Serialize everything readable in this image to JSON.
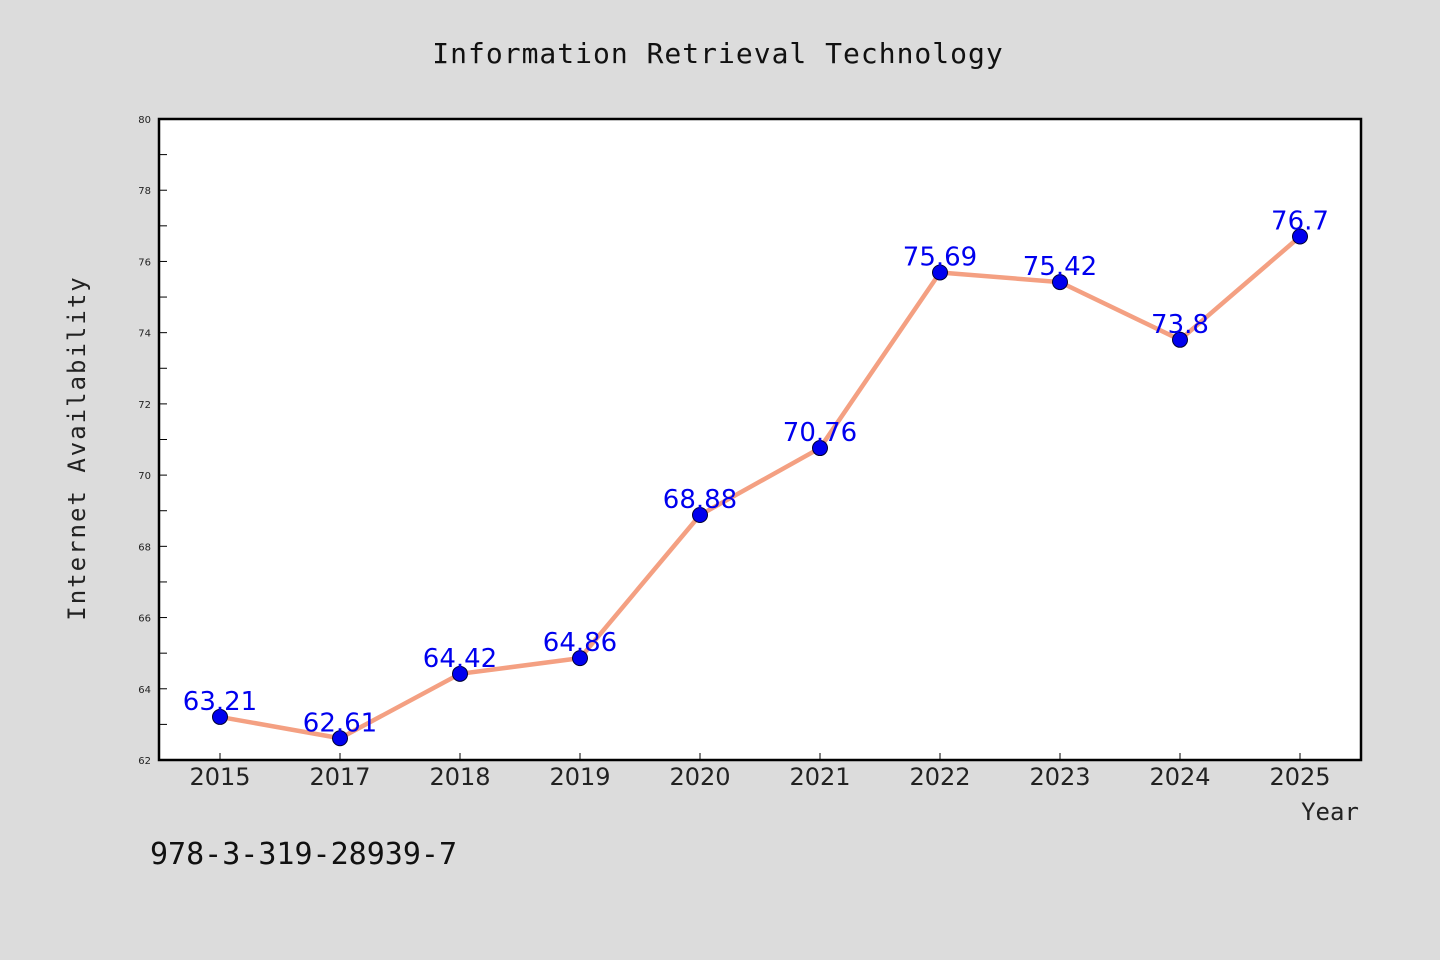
{
  "colors": {
    "background": "#dcdcdc",
    "plot_background": "#ffffff",
    "line": "#f4a082",
    "marker": "#0000ee",
    "data_label": "#0000ee"
  },
  "footer_text": "978-3-319-28939-7",
  "chart_data": {
    "type": "line",
    "title": "Information Retrieval Technology",
    "xlabel": "Year",
    "ylabel": "Internet Availability",
    "categories": [
      "2015",
      "2017",
      "2018",
      "2019",
      "2020",
      "2021",
      "2022",
      "2023",
      "2024",
      "2025"
    ],
    "values": [
      63.21,
      62.61,
      64.42,
      64.86,
      68.88,
      70.76,
      75.69,
      75.42,
      73.8,
      76.7
    ],
    "data_labels": [
      "63.21",
      "62.61",
      "64.42",
      "64.86",
      "68.88",
      "70.76",
      "75.69",
      "75.42",
      "73.8",
      "76.7"
    ],
    "ylim": [
      62,
      80
    ],
    "yticks": [
      62,
      64,
      66,
      68,
      70,
      72,
      74,
      76,
      78,
      80
    ],
    "ytick_labels": [
      "62",
      "64",
      "66",
      "68",
      "70",
      "72",
      "74",
      "76",
      "78",
      "80"
    ],
    "grid": false,
    "legend": "none",
    "marker": "circle"
  }
}
